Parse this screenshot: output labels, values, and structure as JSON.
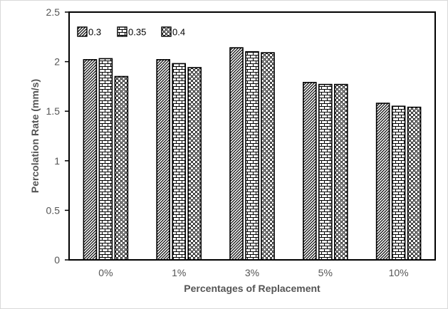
{
  "chart_data": {
    "type": "bar",
    "title": "",
    "xlabel": "Percentages of Replacement",
    "ylabel": "Percolation Rate (mm/s)",
    "categories": [
      "0%",
      "1%",
      "3%",
      "5%",
      "10%"
    ],
    "ylim": [
      0,
      2.5
    ],
    "yticks": [
      "0",
      "0.5",
      "1",
      "1.5",
      "2",
      "2.5"
    ],
    "grid": false,
    "legend_position": "top-left",
    "series": [
      {
        "name": "0.3",
        "pattern": "diagonal-hatch",
        "values": [
          2.02,
          2.02,
          2.14,
          1.79,
          1.58
        ]
      },
      {
        "name": "0.35",
        "pattern": "brick",
        "values": [
          2.03,
          1.98,
          2.1,
          1.77,
          1.55
        ]
      },
      {
        "name": "0.4",
        "pattern": "checker-dots",
        "values": [
          1.85,
          1.94,
          2.09,
          1.77,
          1.54
        ]
      }
    ]
  }
}
